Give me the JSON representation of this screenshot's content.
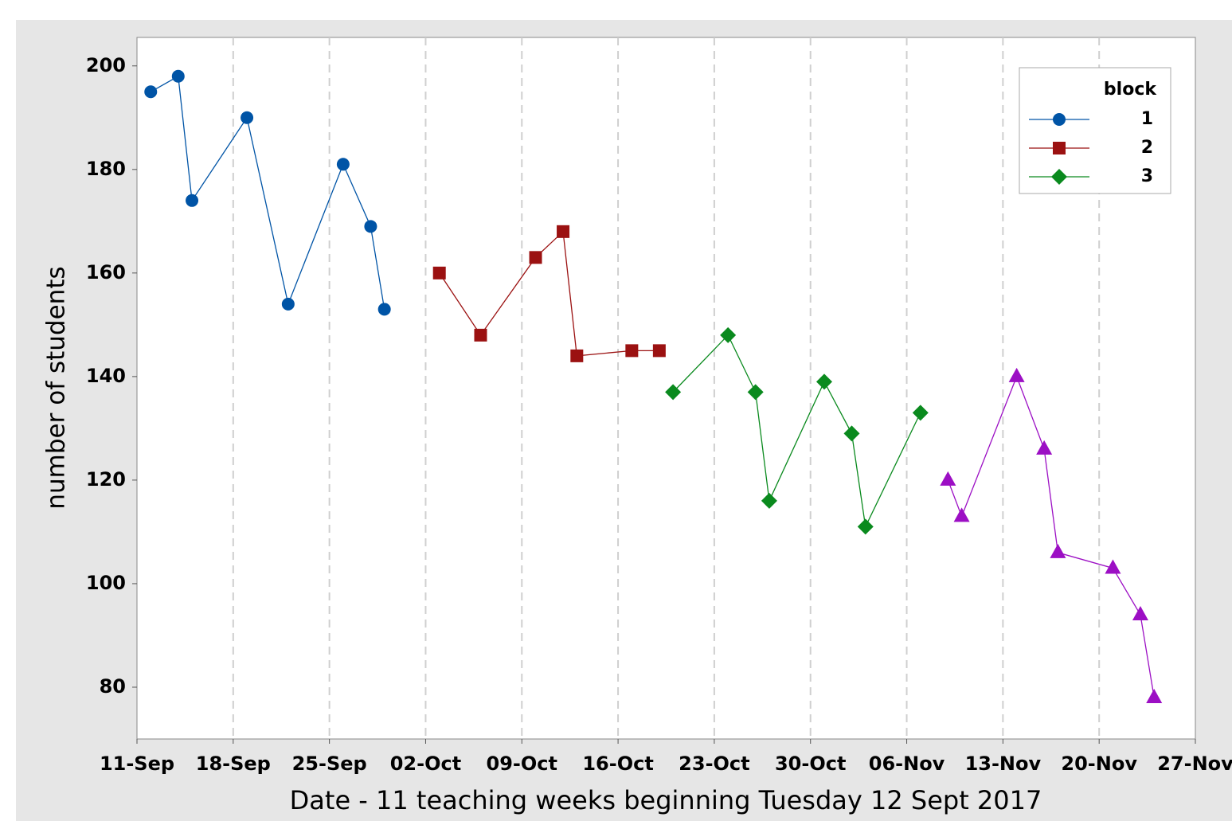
{
  "chart_data": {
    "type": "line",
    "xlabel": "Date - 11 teaching weeks beginning Tuesday 12 Sept 2017",
    "ylabel": "number of students",
    "xlim": [
      "11-Sep",
      "27-Nov"
    ],
    "xticks": [
      "11-Sep",
      "18-Sep",
      "25-Sep",
      "02-Oct",
      "09-Oct",
      "16-Oct",
      "23-Oct",
      "30-Oct",
      "06-Nov",
      "13-Nov",
      "20-Nov",
      "27-Nov"
    ],
    "ylim": [
      70,
      205.5
    ],
    "yticks": [
      80,
      100,
      120,
      140,
      160,
      180,
      200
    ],
    "grid": "x",
    "legend_title": "block",
    "legend_position": "upper right",
    "series": [
      {
        "name": "1",
        "color": "#0054a6",
        "marker": "circle",
        "x": [
          "12-Sep",
          "14-Sep",
          "15-Sep",
          "19-Sep",
          "22-Sep",
          "26-Sep",
          "28-Sep",
          "29-Sep"
        ],
        "values": [
          195,
          198,
          174,
          190,
          154,
          181,
          169,
          153
        ]
      },
      {
        "name": "2",
        "color": "#9b1111",
        "marker": "square",
        "x": [
          "03-Oct",
          "06-Oct",
          "10-Oct",
          "12-Oct",
          "13-Oct",
          "17-Oct",
          "19-Oct"
        ],
        "values": [
          160,
          148,
          163,
          168,
          144,
          145,
          145
        ]
      },
      {
        "name": "3",
        "color": "#0a8a1e",
        "marker": "diamond",
        "x": [
          "20-Oct",
          "24-Oct",
          "26-Oct",
          "27-Oct",
          "31-Oct",
          "02-Nov",
          "03-Nov",
          "07-Nov"
        ],
        "values": [
          137,
          148,
          137,
          116,
          139,
          129,
          111,
          133
        ]
      },
      {
        "color": "#9c0fc4",
        "marker": "triangle",
        "x": [
          "09-Nov",
          "10-Nov",
          "14-Nov",
          "16-Nov",
          "17-Nov",
          "21-Nov",
          "23-Nov",
          "24-Nov"
        ],
        "values": [
          120,
          113,
          140,
          126,
          106,
          103,
          94,
          78
        ]
      }
    ]
  }
}
